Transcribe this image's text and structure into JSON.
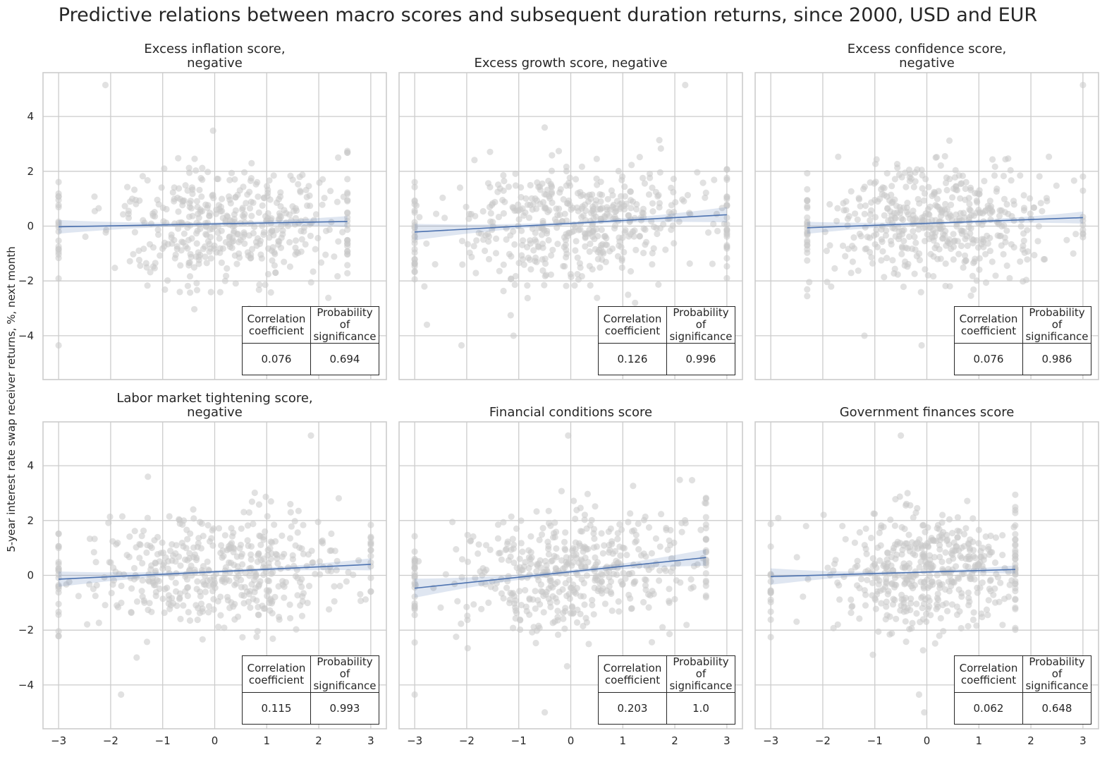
{
  "title": "Predictive relations between macro scores and subsequent duration returns, since 2000, USD and EUR",
  "shared_ylabel": "5-year interest rate swap receiver returns, %, next month",
  "table_headers": {
    "correlation": [
      "Correlation",
      "coefficient"
    ],
    "probability": [
      "Probability",
      "of significance"
    ]
  },
  "colors": {
    "scatter": "#c8c8c8",
    "regression_line": "#4c72b0",
    "confidence_band": "#4c72b0",
    "grid": "#cccccc",
    "frame": "#cccccc"
  },
  "chart_data": [
    {
      "type": "scatter",
      "title_lines": [
        "Excess inflation score,",
        "negative"
      ],
      "xlim": [
        -3.3,
        3.3
      ],
      "ylim": [
        -5.6,
        5.6
      ],
      "xticks": [
        -3,
        -2,
        -1,
        0,
        1,
        2,
        3
      ],
      "yticks": [
        -4,
        -2,
        0,
        2,
        4
      ],
      "x_range": [
        -3,
        2.55
      ],
      "regression": {
        "intercept": 0.08,
        "slope": 0.035,
        "band": [
          0.25,
          0.06,
          0.2
        ]
      },
      "n_points": 470,
      "seed": 11,
      "x_mean": 0.35,
      "x_sd": 1.15,
      "y_sd": 1.1,
      "outliers": [
        [
          -2.1,
          5.15
        ],
        [
          -3,
          -4.35
        ],
        [
          0.2,
          -2.0
        ]
      ],
      "correlation": "0.076",
      "probability": "0.694"
    },
    {
      "type": "scatter",
      "title_lines": [
        "Excess growth score, negative"
      ],
      "xlim": [
        -3.3,
        3.3
      ],
      "ylim": [
        -5.6,
        5.6
      ],
      "xticks": [
        -3,
        -2,
        -1,
        0,
        1,
        2,
        3
      ],
      "yticks": [
        -4,
        -2,
        0,
        2,
        4
      ],
      "x_range": [
        -3,
        3
      ],
      "regression": {
        "intercept": 0.1,
        "slope": 0.105,
        "band": [
          0.3,
          0.06,
          0.28
        ]
      },
      "n_points": 520,
      "seed": 23,
      "x_mean": 0.0,
      "x_sd": 1.25,
      "y_sd": 1.1,
      "outliers": [
        [
          2.2,
          5.15
        ],
        [
          -2.1,
          -4.35
        ],
        [
          -1.1,
          -4.0
        ]
      ],
      "correlation": "0.126",
      "probability": "0.996"
    },
    {
      "type": "scatter",
      "title_lines": [
        "Excess confidence score,",
        "negative"
      ],
      "xlim": [
        -3.3,
        3.3
      ],
      "ylim": [
        -5.6,
        5.6
      ],
      "xticks": [
        -3,
        -2,
        -1,
        0,
        1,
        2,
        3
      ],
      "yticks": [
        -4,
        -2,
        0,
        2,
        4
      ],
      "x_range": [
        -2.3,
        3
      ],
      "regression": {
        "intercept": 0.1,
        "slope": 0.07,
        "band": [
          0.22,
          0.05,
          0.22
        ]
      },
      "n_points": 500,
      "seed": 37,
      "x_mean": 0.3,
      "x_sd": 1.05,
      "y_sd": 1.05,
      "outliers": [
        [
          3,
          5.15
        ],
        [
          -1.2,
          -4.0
        ],
        [
          -0.1,
          -4.35
        ]
      ],
      "correlation": "0.076",
      "probability": "0.986"
    },
    {
      "type": "scatter",
      "title_lines": [
        "Labor market tightening score,",
        "negative"
      ],
      "xlim": [
        -3.3,
        3.3
      ],
      "ylim": [
        -5.6,
        5.6
      ],
      "xticks": [
        -3,
        -2,
        -1,
        0,
        1,
        2,
        3
      ],
      "yticks": [
        -4,
        -2,
        0,
        2,
        4
      ],
      "x_range": [
        -3,
        3
      ],
      "regression": {
        "intercept": 0.13,
        "slope": 0.09,
        "band": [
          0.28,
          0.05,
          0.22
        ]
      },
      "n_points": 500,
      "seed": 51,
      "x_mean": 0.0,
      "x_sd": 1.3,
      "y_sd": 1.05,
      "outliers": [
        [
          1.85,
          5.1
        ],
        [
          -1.8,
          -4.35
        ],
        [
          -1.5,
          -3.0
        ]
      ],
      "correlation": "0.115",
      "probability": "0.993"
    },
    {
      "type": "scatter",
      "title_lines": [
        "Financial conditions score"
      ],
      "xlim": [
        -3.3,
        3.3
      ],
      "ylim": [
        -5.6,
        5.6
      ],
      "xticks": [
        -3,
        -2,
        -1,
        0,
        1,
        2,
        3
      ],
      "yticks": [
        -4,
        -2,
        0,
        2,
        4
      ],
      "x_range": [
        -3,
        2.6
      ],
      "regression": {
        "intercept": 0.13,
        "slope": 0.2,
        "band": [
          0.35,
          0.07,
          0.3
        ]
      },
      "n_points": 500,
      "seed": 67,
      "x_mean": 0.0,
      "x_sd": 1.1,
      "y_sd": 1.1,
      "outliers": [
        [
          -0.05,
          5.1
        ],
        [
          -0.5,
          -5.0
        ],
        [
          -3,
          -4.35
        ]
      ],
      "correlation": "0.203",
      "probability": "1.0"
    },
    {
      "type": "scatter",
      "title_lines": [
        "Government finances score"
      ],
      "xlim": [
        -3.3,
        3.3
      ],
      "ylim": [
        -5.6,
        5.6
      ],
      "xticks": [
        -3,
        -2,
        -1,
        0,
        1,
        2,
        3
      ],
      "yticks": [
        -4,
        -2,
        0,
        2,
        4
      ],
      "x_range": [
        -3,
        1.7
      ],
      "regression": {
        "intercept": 0.12,
        "slope": 0.055,
        "band": [
          0.3,
          0.05,
          0.15
        ]
      },
      "n_points": 500,
      "seed": 83,
      "x_mean": 0.0,
      "x_sd": 0.9,
      "y_sd": 1.1,
      "outliers": [
        [
          -0.5,
          5.1
        ],
        [
          -0.05,
          -5.0
        ],
        [
          -0.15,
          -4.35
        ]
      ],
      "correlation": "0.062",
      "probability": "0.648"
    }
  ]
}
